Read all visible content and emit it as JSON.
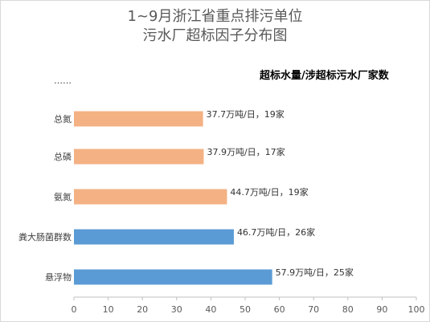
{
  "chart_data": {
    "type": "bar",
    "orientation": "horizontal",
    "title_line1": "1~9月浙江省重点排污单位",
    "title_line2": "污水厂超标因子分布图",
    "subtitle": "超标水量/涉超标污水厂家数",
    "categories": [
      "悬浮物",
      "粪大肠菌群数",
      "氨氮",
      "总磷",
      "总氮",
      "……"
    ],
    "values": [
      57.9,
      46.7,
      44.7,
      37.9,
      37.7,
      null
    ],
    "data_labels": [
      "57.9万吨/日，25家",
      "46.7万吨/日，26家",
      "44.7万吨/日，19家",
      "37.9万吨/日，17家",
      "37.7万吨/日，19家",
      ""
    ],
    "bar_colors": [
      "#5b9bd5",
      "#5b9bd5",
      "#f4b183",
      "#f4b183",
      "#f4b183",
      null
    ],
    "xlim": [
      0,
      100
    ],
    "xticks": [
      0,
      10,
      20,
      30,
      40,
      50,
      60,
      70,
      80,
      90,
      100
    ],
    "grid": false,
    "legend": "none"
  }
}
